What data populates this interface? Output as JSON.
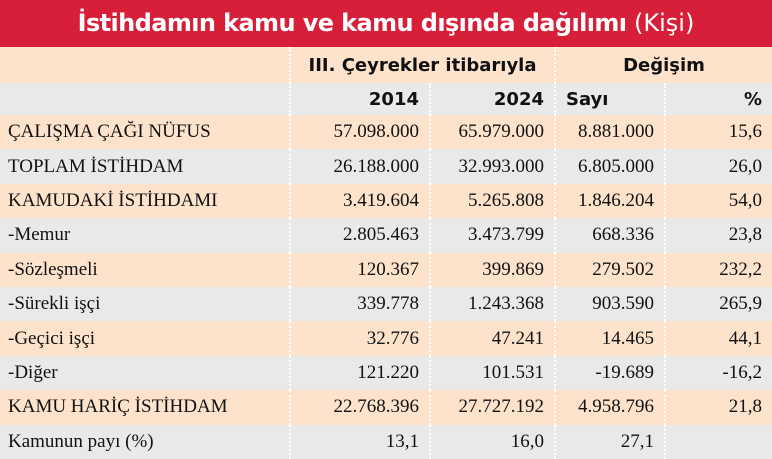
{
  "header": {
    "title": "İstihdamın kamu ve kamu dışında dağılımı",
    "unit": "(Kişi)"
  },
  "table": {
    "group_headers": [
      "III. Çeyrekler itibarıyla",
      "Değişim"
    ],
    "columns": [
      "2014",
      "2024",
      "Sayı",
      "%"
    ],
    "rows": [
      [
        "ÇALIŞMA ÇAĞI NÜFUS",
        "57.098.000",
        "65.979.000",
        "8.881.000",
        "15,6"
      ],
      [
        "TOPLAM İSTİHDAM",
        "26.188.000",
        "32.993.000",
        "6.805.000",
        "26,0"
      ],
      [
        "KAMUDAKİ İSTİHDAMI",
        "3.419.604",
        "5.265.808",
        "1.846.204",
        "54,0"
      ],
      [
        "-Memur",
        "2.805.463",
        "3.473.799",
        "668.336",
        "23,8"
      ],
      [
        "-Sözleşmeli",
        "120.367",
        "399.869",
        "279.502",
        "232,2"
      ],
      [
        "-Sürekli işçi",
        "339.778",
        "1.243.368",
        "903.590",
        "265,9"
      ],
      [
        "-Geçici işçi",
        "32.776",
        "47.241",
        "14.465",
        "44,1"
      ],
      [
        "-Diğer",
        "121.220",
        "101.531",
        "-19.689",
        "-16,2"
      ],
      [
        "KAMU HARİÇ İSTİHDAM",
        "22.768.396",
        "27.727.192",
        "4.958.796",
        "21,8"
      ],
      [
        "Kamunun payı (%)",
        "13,1",
        "16,0",
        "27,1"
      ]
    ]
  }
}
